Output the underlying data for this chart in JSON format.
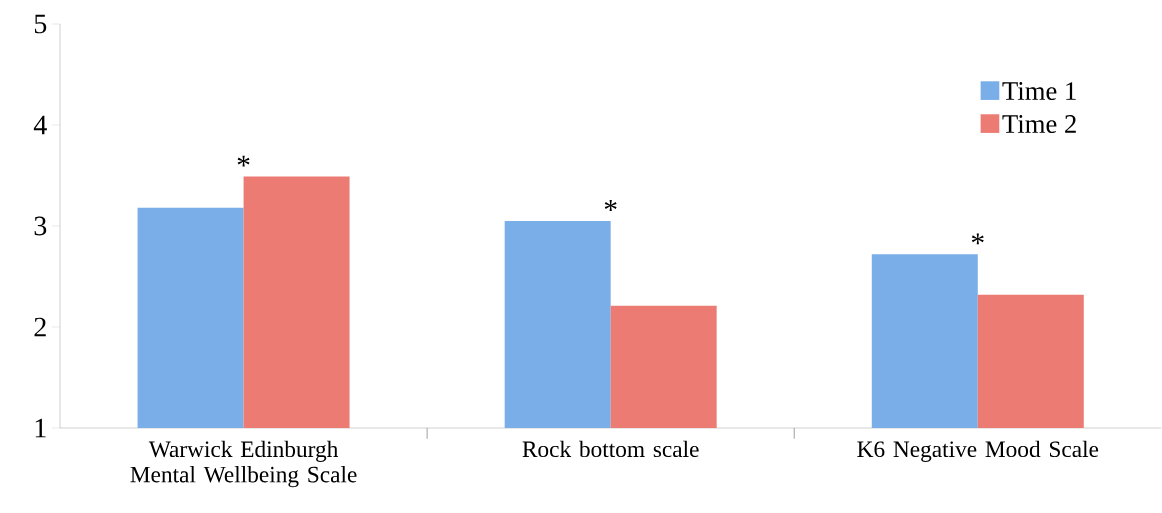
{
  "chart_data": {
    "type": "bar",
    "categories": [
      "Warwick Edinburgh Mental Wellbeing Scale",
      "Rock bottom scale",
      "K6 Negative Mood Scale"
    ],
    "series": [
      {
        "name": "Time 1",
        "color": "#7aaee8",
        "values": [
          3.18,
          3.05,
          2.72
        ]
      },
      {
        "name": "Time 2",
        "color": "#ec7b74",
        "values": [
          3.49,
          2.21,
          2.32
        ]
      }
    ],
    "ylim": [
      1,
      5
    ],
    "yticks": [
      1,
      2,
      3,
      4,
      5
    ],
    "grid": false,
    "legend": "top right",
    "annotations": [
      "*",
      "*",
      "*"
    ]
  }
}
